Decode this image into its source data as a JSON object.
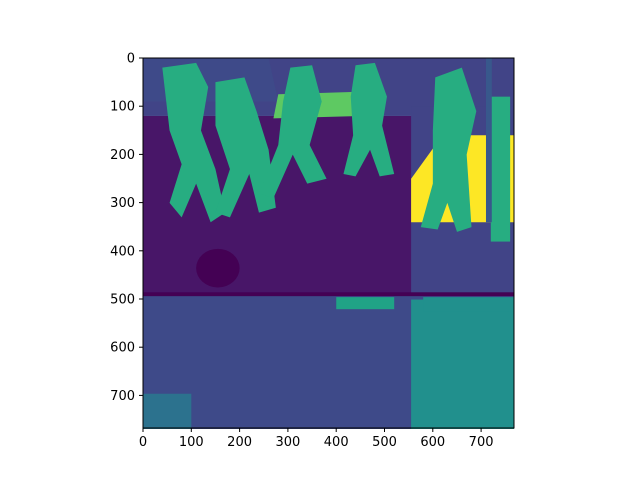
{
  "chart_data": {
    "type": "heatmap",
    "title": "",
    "xlabel": "",
    "ylabel": "",
    "image_extent": [
      0,
      768,
      768,
      0
    ],
    "xlim": [
      0,
      768
    ],
    "ylim": [
      768,
      0
    ],
    "x_ticks": [
      "0",
      "100",
      "200",
      "300",
      "400",
      "500",
      "600",
      "700"
    ],
    "y_ticks": [
      "0",
      "100",
      "200",
      "300",
      "400",
      "500",
      "600",
      "700"
    ],
    "colormap": "viridis",
    "grid": false,
    "legend": "none",
    "colors": {
      "c0": "#440154",
      "c1": "#481668",
      "c2": "#471365",
      "c3": "#3e4a89",
      "c4": "#414487",
      "c5": "#38588c",
      "c6": "#2c728e",
      "c7": "#21908d",
      "c8": "#20a386",
      "c9": "#27ad81",
      "c10": "#5ec962",
      "c11": "#fde725"
    }
  }
}
